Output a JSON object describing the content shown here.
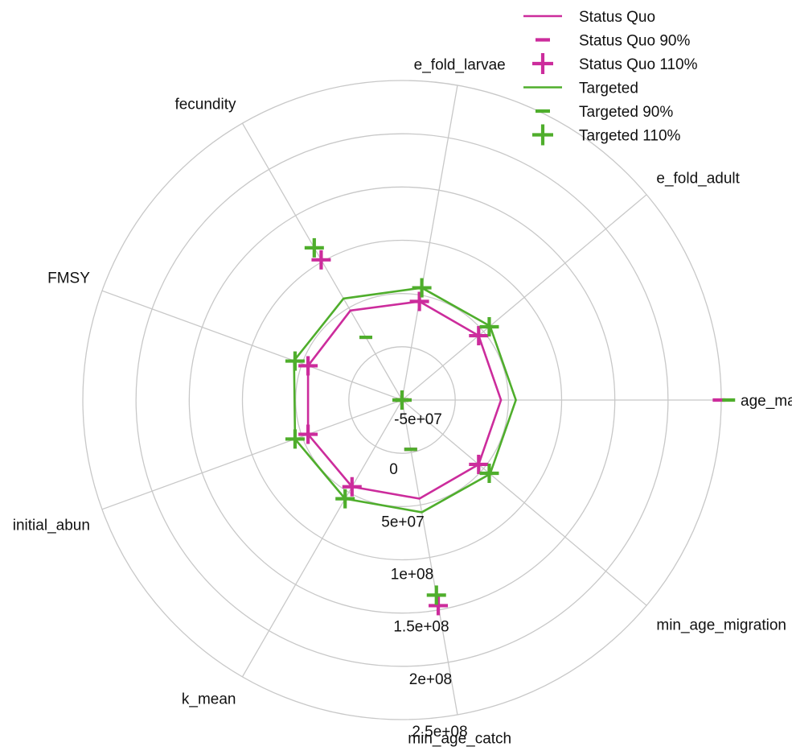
{
  "chart_data": {
    "type": "radar",
    "title": "",
    "axes": [
      "age_mat_sigm",
      "e_fold_adult",
      "e_fold_larvae",
      "fecundity",
      "FMSY",
      "initial_abun",
      "k_mean",
      "min_age_catch",
      "min_age_migration"
    ],
    "r_range": [
      -50000000,
      250000000
    ],
    "ring_values": [
      -50000000,
      0,
      50000000,
      100000000,
      150000000,
      200000000,
      250000000
    ],
    "ring_labels": [
      "-5e+07",
      "0",
      "5e+07",
      "1e+08",
      "1.5e+08",
      "2e+08",
      "2.5e+08"
    ],
    "legend": {
      "position": "top-right",
      "entries": [
        "Status Quo",
        "Status Quo 90%",
        "Status Quo 110%",
        "Targeted",
        "Targeted 90%",
        "Targeted 110%"
      ]
    },
    "series": [
      {
        "name": "Status Quo",
        "kind": "line",
        "color": "#cc2c9c",
        "values": [
          43000000,
          44000000,
          44000000,
          47000000,
          44000000,
          44000000,
          44000000,
          44000000,
          44000000
        ]
      },
      {
        "name": "Status Quo 90%",
        "kind": "minus",
        "color": "#cc2c9c",
        "values": [
          -50000000,
          -50000000,
          -50000000,
          18000000,
          -50000000,
          -50000000,
          -50000000,
          -3000000,
          -50000000
        ]
      },
      {
        "name": "Status Quo 110%",
        "kind": "plus",
        "color": "#cc2c9c",
        "values": [
          -50000000,
          44000000,
          44000000,
          102000000,
          44000000,
          44000000,
          44000000,
          146000000,
          44000000
        ]
      },
      {
        "name": "Targeted",
        "kind": "line",
        "color": "#4fae2c",
        "values": [
          57000000,
          58000000,
          57000000,
          60000000,
          58000000,
          57000000,
          57000000,
          57000000,
          58000000
        ]
      },
      {
        "name": "Targeted 90%",
        "kind": "minus",
        "color": "#4fae2c",
        "values": [
          -50000000,
          -50000000,
          -50000000,
          18000000,
          -50000000,
          -50000000,
          -50000000,
          -3000000,
          -50000000
        ]
      },
      {
        "name": "Targeted 110%",
        "kind": "plus",
        "color": "#4fae2c",
        "values": [
          -50000000,
          57000000,
          57000000,
          115000000,
          57000000,
          57000000,
          57000000,
          136000000,
          57000000
        ]
      }
    ],
    "extra_points": [
      {
        "axis": "age_mat_sigm",
        "value": 248000000,
        "color": "#cc2c9c",
        "kind": "minus"
      },
      {
        "axis": "age_mat_sigm",
        "value": 257000000,
        "color": "#4fae2c",
        "kind": "minus"
      }
    ],
    "grid": true
  }
}
